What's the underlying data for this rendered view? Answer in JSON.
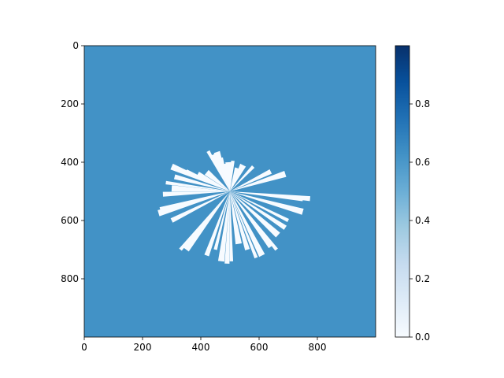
{
  "chart_data": {
    "type": "heatmap",
    "title": "",
    "xlabel": "",
    "ylabel": "",
    "xlim": [
      0,
      1000
    ],
    "ylim": [
      1000,
      0
    ],
    "x_ticks": [
      0,
      200,
      400,
      600,
      800
    ],
    "y_ticks": [
      0,
      200,
      400,
      600,
      800
    ],
    "grid": false,
    "background_value": 0.6,
    "background_color": "#4292c6",
    "free_space_color": "#f7fbff",
    "colormap": "Blues",
    "ray_origin": [
      500,
      500
    ],
    "ray_endpoints": [
      [
        425,
        362
      ],
      [
        440,
        375
      ],
      [
        455,
        365
      ],
      [
        470,
        385
      ],
      [
        485,
        405
      ],
      [
        495,
        400
      ],
      [
        510,
        395
      ],
      [
        525,
        420
      ],
      [
        545,
        410
      ],
      [
        580,
        415
      ],
      [
        640,
        432
      ],
      [
        690,
        440
      ],
      [
        750,
        528
      ],
      [
        775,
        525
      ],
      [
        750,
        570
      ],
      [
        700,
        600
      ],
      [
        690,
        625
      ],
      [
        665,
        650
      ],
      [
        660,
        700
      ],
      [
        640,
        690
      ],
      [
        610,
        720
      ],
      [
        590,
        728
      ],
      [
        560,
        700
      ],
      [
        530,
        680
      ],
      [
        505,
        740
      ],
      [
        490,
        748
      ],
      [
        470,
        740
      ],
      [
        450,
        700
      ],
      [
        420,
        720
      ],
      [
        350,
        700
      ],
      [
        330,
        700
      ],
      [
        300,
        600
      ],
      [
        255,
        575
      ],
      [
        260,
        560
      ],
      [
        270,
        510
      ],
      [
        300,
        490
      ],
      [
        280,
        470
      ],
      [
        310,
        450
      ],
      [
        300,
        415
      ],
      [
        350,
        430
      ],
      [
        390,
        440
      ],
      [
        420,
        435
      ]
    ],
    "colorbar": {
      "min": 0.0,
      "max": 1.0,
      "ticks": [
        0.0,
        0.2,
        0.4,
        0.6,
        0.8
      ],
      "tick_labels": [
        "0.0",
        "0.2",
        "0.4",
        "0.6",
        "0.8"
      ]
    }
  }
}
